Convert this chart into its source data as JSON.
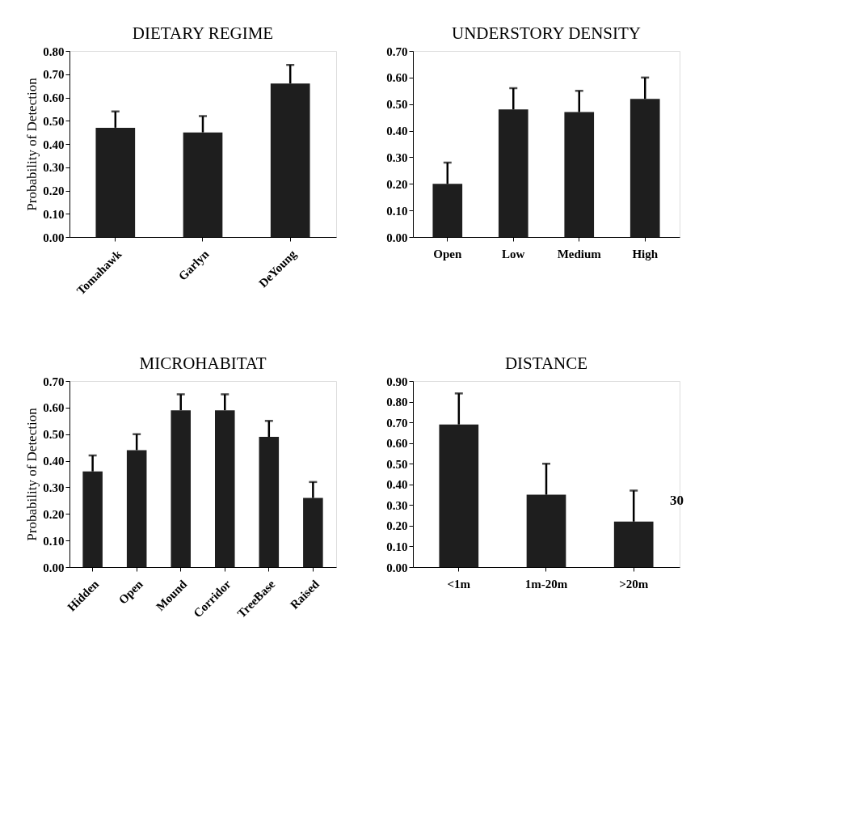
{
  "chart_data": [
    {
      "type": "bar",
      "title": "DIETARY REGIME",
      "ylabel": "Probability of Detection",
      "categories": [
        "Tomahawk",
        "Garlyn",
        "DeYoung"
      ],
      "values": [
        0.47,
        0.45,
        0.66
      ],
      "errors": [
        [
          0.47,
          0.54
        ],
        [
          0.45,
          0.52
        ],
        [
          0.66,
          0.74
        ]
      ],
      "color": "#1e1e1e",
      "ylim": [
        0,
        0.8
      ],
      "yticks": [
        {
          "value": 0,
          "label": "0.00"
        },
        {
          "value": 0.1,
          "label": "0.10"
        },
        {
          "value": 0.2,
          "label": "0.20"
        },
        {
          "value": 0.3,
          "label": "0.30"
        },
        {
          "value": 0.4,
          "label": "0.40"
        },
        {
          "value": 0.5,
          "label": "0.50"
        },
        {
          "value": 0.6,
          "label": "0.60"
        },
        {
          "value": 0.7,
          "label": "0.70"
        },
        {
          "value": 0.8,
          "label": "0.80"
        }
      ],
      "grid": false
    },
    {
      "type": "bar",
      "title": "UNDERSTORY DENSITY",
      "categories": [
        "Open",
        "Low",
        "Medium",
        "High"
      ],
      "values": [
        0.2,
        0.48,
        0.47,
        0.52
      ],
      "errors": [
        [
          0.2,
          0.28
        ],
        [
          0.48,
          0.56
        ],
        [
          0.47,
          0.55
        ],
        [
          0.52,
          0.6
        ]
      ],
      "color": "#1e1e1e",
      "ylim": [
        0,
        0.7
      ],
      "yticks": [
        {
          "value": 0,
          "label": "0.00"
        },
        {
          "value": 0.1,
          "label": "0.10"
        },
        {
          "value": 0.2,
          "label": "0.20"
        },
        {
          "value": 0.3,
          "label": "0.30"
        },
        {
          "value": 0.4,
          "label": "0.40"
        },
        {
          "value": 0.5,
          "label": "0.50"
        },
        {
          "value": 0.6,
          "label": "0.60"
        },
        {
          "value": 0.7,
          "label": "0.70"
        }
      ],
      "grid": false
    },
    {
      "type": "bar",
      "title": "MICROHABITAT",
      "ylabel": "Probability of Detection",
      "categories": [
        "Hidden",
        "Open",
        "Mound",
        "Corridor",
        "TreeBase",
        "Raised"
      ],
      "values": [
        0.36,
        0.44,
        0.59,
        0.59,
        0.49,
        0.26
      ],
      "errors": [
        [
          0.36,
          0.42
        ],
        [
          0.44,
          0.5
        ],
        [
          0.59,
          0.65
        ],
        [
          0.59,
          0.65
        ],
        [
          0.49,
          0.55
        ],
        [
          0.26,
          0.32
        ]
      ],
      "color": "#1e1e1e",
      "ylim": [
        0,
        0.7
      ],
      "yticks": [
        {
          "value": 0,
          "label": "0.00"
        },
        {
          "value": 0.1,
          "label": "0.10"
        },
        {
          "value": 0.2,
          "label": "0.20"
        },
        {
          "value": 0.3,
          "label": "0.30"
        },
        {
          "value": 0.4,
          "label": "0.40"
        },
        {
          "value": 0.5,
          "label": "0.50"
        },
        {
          "value": 0.6,
          "label": "0.60"
        },
        {
          "value": 0.7,
          "label": "0.70"
        }
      ],
      "grid": false
    },
    {
      "type": "bar",
      "title": "DISTANCE",
      "categories": [
        "<1m",
        "1m-20m",
        ">20m"
      ],
      "values": [
        0.69,
        0.35,
        0.22
      ],
      "errors": [
        [
          0.69,
          0.84
        ],
        [
          0.35,
          0.5
        ],
        [
          0.22,
          0.37
        ]
      ],
      "color": "#1e1e1e",
      "ylim": [
        0,
        0.9
      ],
      "yticks": [
        {
          "value": 0,
          "label": "0.00"
        },
        {
          "value": 0.1,
          "label": "0.10"
        },
        {
          "value": 0.2,
          "label": "0.20"
        },
        {
          "value": 0.3,
          "label": "0.30"
        },
        {
          "value": 0.4,
          "label": "0.40"
        },
        {
          "value": 0.5,
          "label": "0.50"
        },
        {
          "value": 0.6,
          "label": "0.60"
        },
        {
          "value": 0.7,
          "label": "0.70"
        },
        {
          "value": 0.8,
          "label": "0.80"
        },
        {
          "value": 0.9,
          "label": "0.90"
        }
      ],
      "grid": false,
      "annotations": [
        "30"
      ]
    }
  ]
}
